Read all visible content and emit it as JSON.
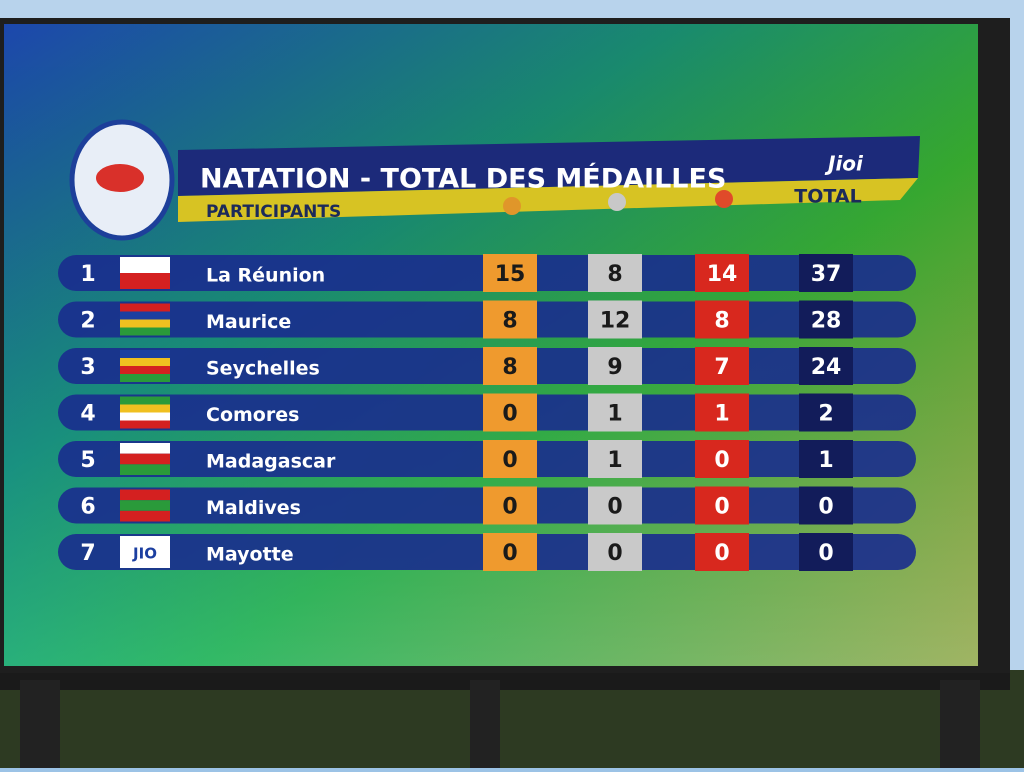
{
  "header": {
    "title": "NATATION - TOTAL DES MÉDAILLES",
    "logo": "Jioi",
    "participants": "PARTICIPANTS",
    "total": "TOTAL"
  },
  "table": {
    "rows": [
      {
        "rank": 1,
        "country": "La Réunion",
        "gold": 15,
        "silver": 8,
        "bronze": 14,
        "total": 37
      },
      {
        "rank": 2,
        "country": "Maurice",
        "gold": 8,
        "silver": 12,
        "bronze": 8,
        "total": 28
      },
      {
        "rank": 3,
        "country": "Seychelles",
        "gold": 8,
        "silver": 9,
        "bronze": 7,
        "total": 24
      },
      {
        "rank": 4,
        "country": "Comores",
        "gold": 0,
        "silver": 1,
        "bronze": 1,
        "total": 2
      },
      {
        "rank": 5,
        "country": "Madagascar",
        "gold": 0,
        "silver": 1,
        "bronze": 0,
        "total": 1
      },
      {
        "rank": 6,
        "country": "Maldives",
        "gold": 0,
        "silver": 0,
        "bronze": 0,
        "total": 0
      },
      {
        "rank": 7,
        "country": "Mayotte",
        "flag_label": "JIO",
        "gold": 0,
        "silver": 0,
        "bronze": 0,
        "total": 0
      }
    ]
  }
}
